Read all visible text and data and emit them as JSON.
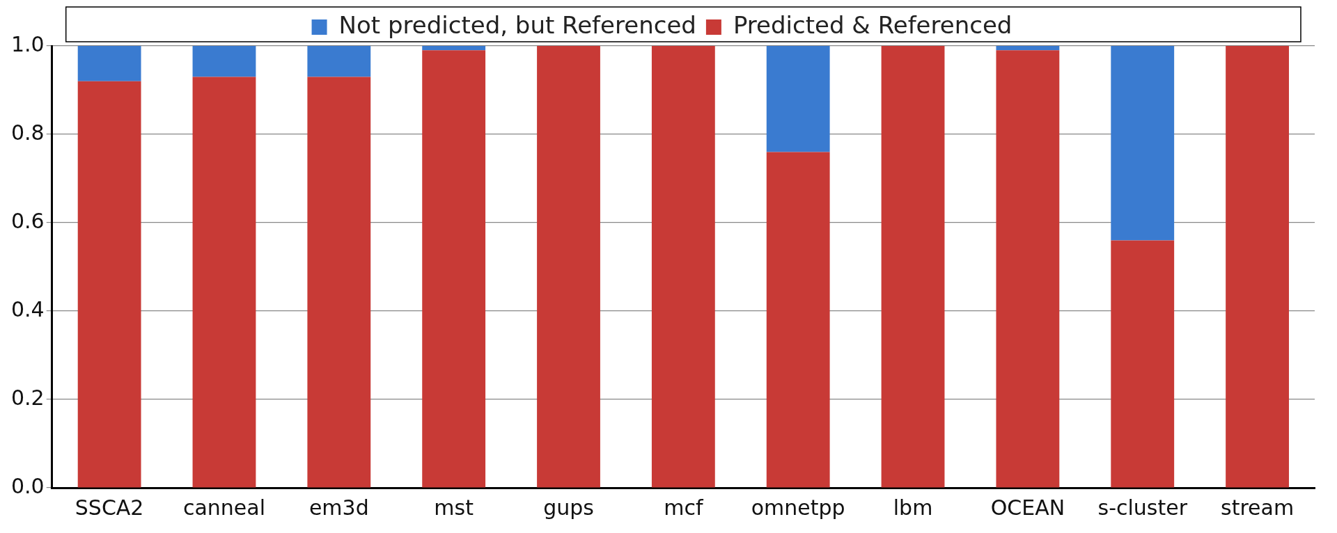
{
  "chart_data": {
    "type": "bar",
    "stacked": true,
    "categories": [
      "SSCA2",
      "canneal",
      "em3d",
      "mst",
      "gups",
      "mcf",
      "omnetpp",
      "lbm",
      "OCEAN",
      "s-cluster",
      "stream"
    ],
    "series": [
      {
        "name": "Predicted & Referenced",
        "color": "#c83a36",
        "values": [
          0.92,
          0.93,
          0.93,
          0.99,
          1.0,
          1.0,
          0.76,
          1.0,
          0.99,
          0.56,
          1.0
        ]
      },
      {
        "name": "Not predicted, but Referenced",
        "color": "#3a7bd0",
        "values": [
          0.08,
          0.07,
          0.07,
          0.01,
          0.0,
          0.0,
          0.24,
          0.0,
          0.01,
          0.44,
          0.0
        ]
      }
    ],
    "ylim": [
      0,
      1.0
    ],
    "yticks": [
      {
        "value": 0,
        "label": "0.0"
      },
      {
        "value": 0.2,
        "label": "0.2"
      },
      {
        "value": 0.4,
        "label": "0.4"
      },
      {
        "value": 0.6,
        "label": "0.6"
      },
      {
        "value": 0.8,
        "label": "0.8"
      },
      {
        "value": 1.0,
        "label": "1.0"
      }
    ],
    "grid": "y",
    "legend": "top"
  }
}
